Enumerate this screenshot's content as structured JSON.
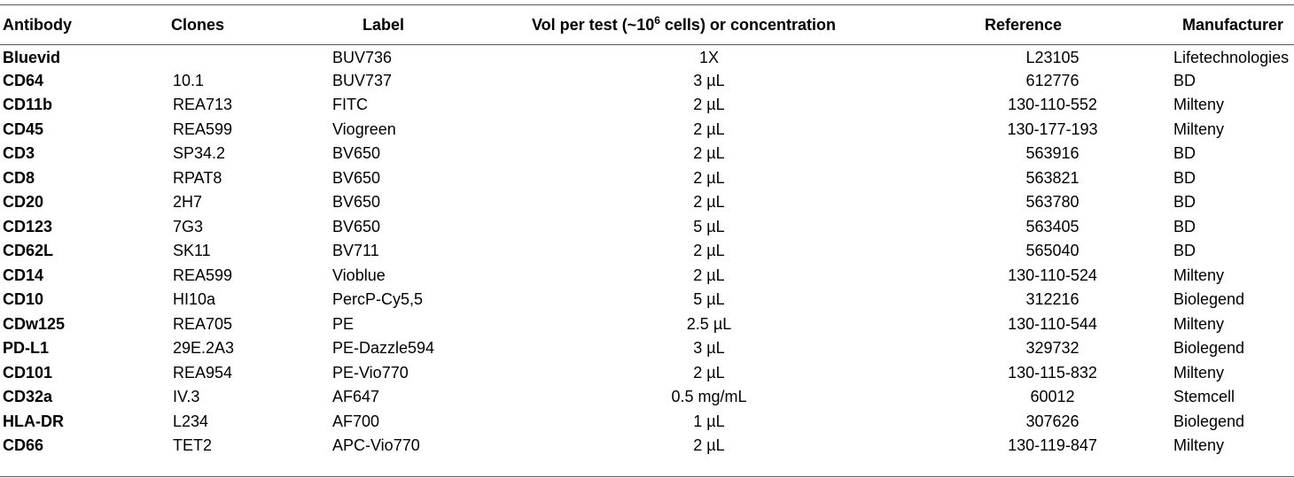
{
  "headers": {
    "antibody": "Antibody",
    "clones": "Clones",
    "label": "Label",
    "vol_prefix": "Vol per test (~10",
    "vol_sup": "6",
    "vol_suffix": " cells) or concentration",
    "reference": "Reference",
    "manufacturer": "Manufacturer"
  },
  "rows": [
    {
      "antibody": "Bluevid",
      "clones": "",
      "label": "BUV736",
      "vol": "1X",
      "reference": "L23105",
      "manufacturer": "Lifetechnologies"
    },
    {
      "antibody": "CD64",
      "clones": "10.1",
      "label": "BUV737",
      "vol": "3 µL",
      "reference": "612776",
      "manufacturer": "BD"
    },
    {
      "antibody": "CD11b",
      "clones": "REA713",
      "label": "FITC",
      "vol": "2 µL",
      "reference": "130-110-552",
      "manufacturer": "Milteny"
    },
    {
      "antibody": "CD45",
      "clones": "REA599",
      "label": "Viogreen",
      "vol": "2 µL",
      "reference": "130-177-193",
      "manufacturer": "Milteny"
    },
    {
      "antibody": "CD3",
      "clones": "SP34.2",
      "label": "BV650",
      "vol": "2 µL",
      "reference": "563916",
      "manufacturer": "BD"
    },
    {
      "antibody": "CD8",
      "clones": "RPAT8",
      "label": "BV650",
      "vol": "2 µL",
      "reference": "563821",
      "manufacturer": "BD"
    },
    {
      "antibody": "CD20",
      "clones": "2H7",
      "label": "BV650",
      "vol": "2 µL",
      "reference": "563780",
      "manufacturer": "BD"
    },
    {
      "antibody": "CD123",
      "clones": "7G3",
      "label": "BV650",
      "vol": "5 µL",
      "reference": "563405",
      "manufacturer": "BD"
    },
    {
      "antibody": "CD62L",
      "clones": "SK11",
      "label": "BV711",
      "vol": "2 µL",
      "reference": "565040",
      "manufacturer": "BD"
    },
    {
      "antibody": "CD14",
      "clones": "REA599",
      "label": "Vioblue",
      "vol": "2 µL",
      "reference": "130-110-524",
      "manufacturer": "Milteny"
    },
    {
      "antibody": "CD10",
      "clones": "HI10a",
      "label": "PercP-Cy5,5",
      "vol": "5 µL",
      "reference": "312216",
      "manufacturer": "Biolegend"
    },
    {
      "antibody": "CDw125",
      "clones": "REA705",
      "label": "PE",
      "vol": "2.5 µL",
      "reference": "130-110-544",
      "manufacturer": "Milteny"
    },
    {
      "antibody": "PD-L1",
      "clones": "29E.2A3",
      "label": "PE-Dazzle594",
      "vol": "3 µL",
      "reference": "329732",
      "manufacturer": "Biolegend"
    },
    {
      "antibody": "CD101",
      "clones": "REA954",
      "label": "PE-Vio770",
      "vol": "2 µL",
      "reference": "130-115-832",
      "manufacturer": "Milteny"
    },
    {
      "antibody": "CD32a",
      "clones": "IV.3",
      "label": "AF647",
      "vol": "0.5 mg/mL",
      "reference": "60012",
      "manufacturer": "Stemcell"
    },
    {
      "antibody": "HLA-DR",
      "clones": "L234",
      "label": "AF700",
      "vol": "1 µL",
      "reference": "307626",
      "manufacturer": "Biolegend"
    },
    {
      "antibody": "CD66",
      "clones": "TET2",
      "label": "APC-Vio770",
      "vol": "2 µL",
      "reference": "130-119-847",
      "manufacturer": "Milteny"
    }
  ]
}
